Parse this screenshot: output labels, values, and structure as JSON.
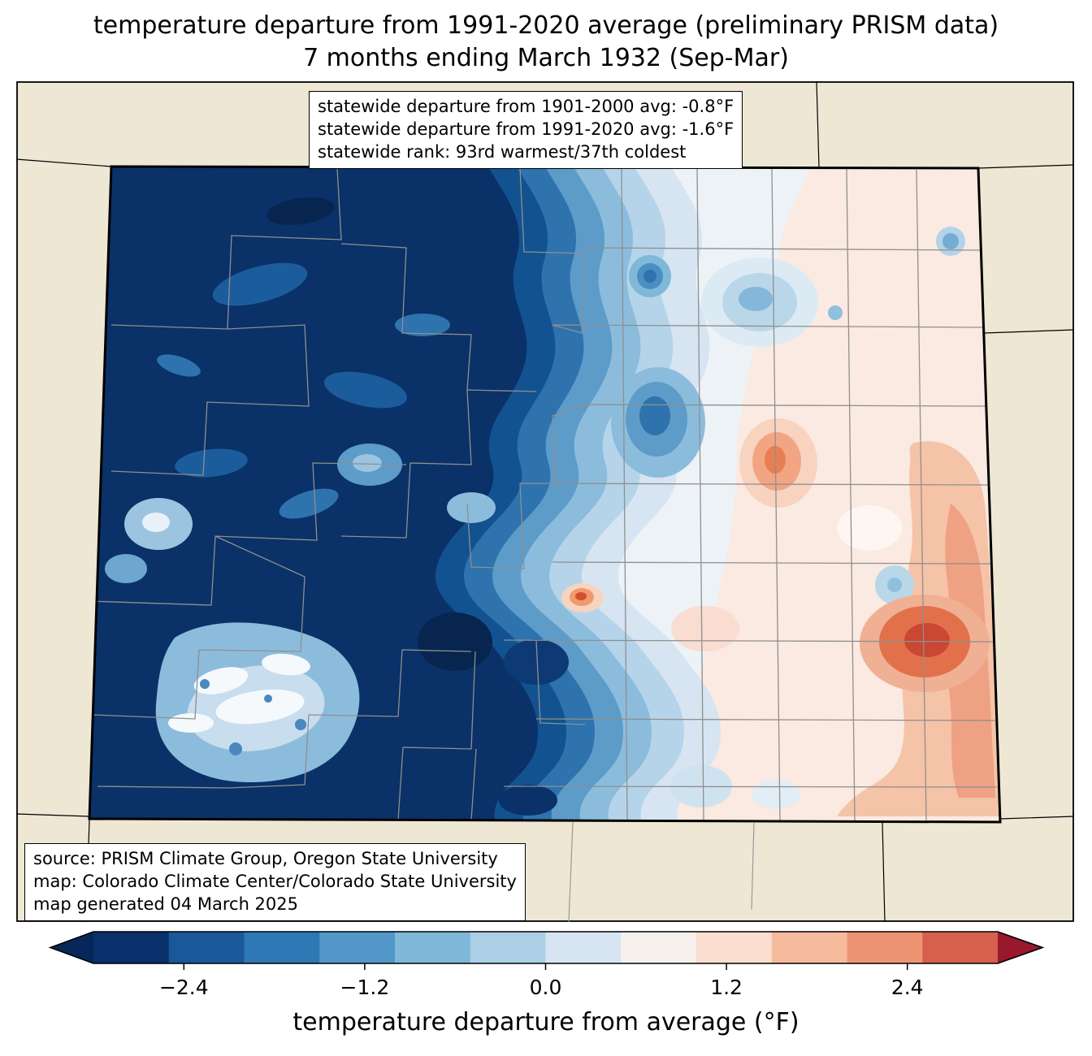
{
  "title": {
    "line1": "temperature departure from 1991-2020 average (preliminary PRISM data)",
    "line2": "7 months ending March 1932 (Sep-Mar)"
  },
  "stats_box": {
    "lines": [
      "statewide departure from 1901-2000 avg: -0.8°F",
      "statewide departure from 1991-2020 avg: -1.6°F",
      "statewide rank: 93rd warmest/37th coldest"
    ]
  },
  "credits_box": {
    "lines": [
      "source: PRISM Climate Group, Oregon State University",
      "map: Colorado Climate Center/Colorado State University",
      "map generated 04 March 2025"
    ]
  },
  "colorbar": {
    "label": "temperature departure from average (°F)",
    "min": -3.0,
    "max": 3.0,
    "tick_values": [
      -2.4,
      -1.2,
      0.0,
      1.2,
      2.4
    ],
    "tick_labels": [
      "−2.4",
      "−1.2",
      "0.0",
      "1.2",
      "2.4"
    ],
    "segment_colors": [
      "#08306b",
      "#1a5899",
      "#2e78b5",
      "#5198c8",
      "#7fb8d9",
      "#abd0e6",
      "#d6e5f1",
      "#f5f0ec",
      "#fbdecf",
      "#f6bb9d",
      "#ef9473",
      "#d6604d"
    ],
    "left_arrow_color": "#07275a",
    "right_arrow_color": "#99182c"
  },
  "map": {
    "outside_fill": "#ede7d3",
    "state_border_color": "#000000",
    "county_line_color": "#8f8f8f"
  },
  "chart_data": {
    "type": "heatmap",
    "title": "temperature departure from 1991-2020 average (preliminary PRISM data) — 7 months ending March 1932 (Sep-Mar)",
    "colorbar_label": "temperature departure from average (°F)",
    "colorbar_range": [
      -3.0,
      3.0
    ],
    "colorbar_ticks": [
      -2.4,
      -1.2,
      0.0,
      1.2,
      2.4
    ],
    "statewide_departure_from_1901_2000_avg_F": -0.8,
    "statewide_departure_from_1991_2020_avg_F": -1.6,
    "statewide_rank": "93rd warmest/37th coldest",
    "pattern_summary": "western/mountain Colorado strongly negative (below -2.4°F), central transition near 0°F, eastern plains slightly positive (up to about +2°F) with a warm maximum in the southeast"
  }
}
